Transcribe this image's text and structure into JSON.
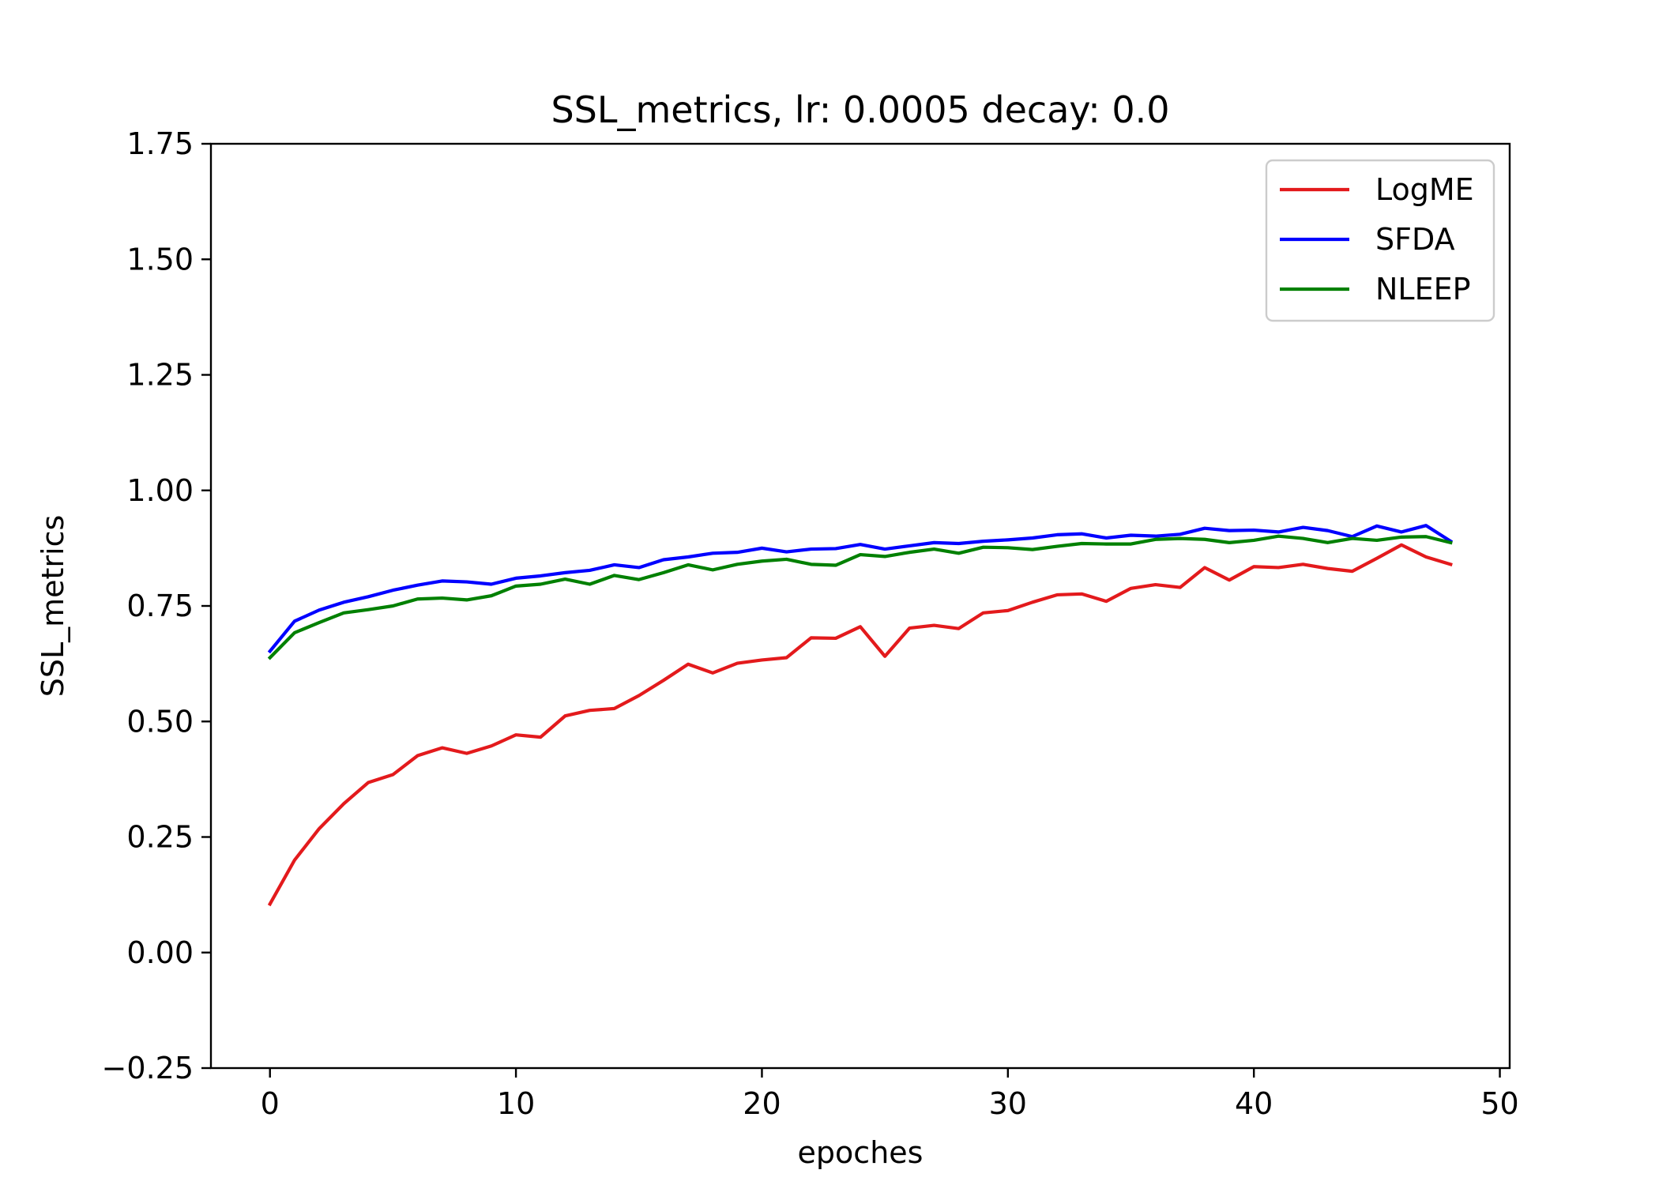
{
  "chart_data": {
    "type": "line",
    "title": "SSL_metrics, lr: 0.0005 decay: 0.0",
    "xlabel": "epoches",
    "ylabel": "SSL_metrics",
    "xlim": [
      -2.4,
      50.4
    ],
    "ylim": [
      -0.25,
      1.75
    ],
    "xticks": [
      0,
      10,
      20,
      30,
      40,
      50
    ],
    "yticks": [
      -0.25,
      0.0,
      0.25,
      0.5,
      0.75,
      1.0,
      1.25,
      1.5,
      1.75
    ],
    "ytick_labels": [
      "−0.25",
      "0.00",
      "0.25",
      "0.50",
      "0.75",
      "1.00",
      "1.25",
      "1.50",
      "1.75"
    ],
    "grid": false,
    "legend_position": "top-right",
    "x": [
      0,
      1,
      2,
      3,
      4,
      5,
      6,
      7,
      8,
      9,
      10,
      11,
      12,
      13,
      14,
      15,
      16,
      17,
      18,
      19,
      20,
      21,
      22,
      23,
      24,
      25,
      26,
      27,
      28,
      29,
      30,
      31,
      32,
      33,
      34,
      35,
      36,
      37,
      38,
      39,
      40,
      41,
      42,
      43,
      44,
      45,
      46,
      47,
      48
    ],
    "series": [
      {
        "name": "LogME",
        "color": "#e31a1c",
        "values": [
          0.105,
          0.2,
          0.268,
          0.322,
          0.368,
          0.385,
          0.426,
          0.443,
          0.431,
          0.447,
          0.471,
          0.466,
          0.512,
          0.524,
          0.528,
          0.556,
          0.589,
          0.624,
          0.605,
          0.626,
          0.633,
          0.638,
          0.681,
          0.68,
          0.705,
          0.641,
          0.702,
          0.708,
          0.701,
          0.735,
          0.74,
          0.758,
          0.774,
          0.776,
          0.76,
          0.788,
          0.796,
          0.79,
          0.833,
          0.806,
          0.835,
          0.833,
          0.84,
          0.831,
          0.825,
          0.853,
          0.882,
          0.856,
          0.84
        ]
      },
      {
        "name": "SFDA",
        "color": "#0000ff",
        "values": [
          0.652,
          0.717,
          0.741,
          0.758,
          0.77,
          0.784,
          0.795,
          0.804,
          0.802,
          0.797,
          0.81,
          0.815,
          0.822,
          0.827,
          0.839,
          0.833,
          0.85,
          0.856,
          0.864,
          0.866,
          0.875,
          0.867,
          0.873,
          0.874,
          0.883,
          0.873,
          0.88,
          0.887,
          0.885,
          0.89,
          0.893,
          0.897,
          0.904,
          0.906,
          0.897,
          0.903,
          0.901,
          0.905,
          0.918,
          0.913,
          0.914,
          0.91,
          0.92,
          0.913,
          0.9,
          0.923,
          0.91,
          0.924,
          0.89
        ]
      },
      {
        "name": "NLEEP",
        "color": "#008000",
        "values": [
          0.638,
          0.692,
          0.714,
          0.735,
          0.742,
          0.75,
          0.765,
          0.767,
          0.763,
          0.772,
          0.793,
          0.797,
          0.808,
          0.797,
          0.816,
          0.807,
          0.822,
          0.839,
          0.828,
          0.84,
          0.847,
          0.851,
          0.84,
          0.838,
          0.861,
          0.857,
          0.866,
          0.873,
          0.864,
          0.877,
          0.876,
          0.872,
          0.879,
          0.885,
          0.884,
          0.884,
          0.894,
          0.896,
          0.894,
          0.887,
          0.892,
          0.901,
          0.896,
          0.887,
          0.896,
          0.892,
          0.899,
          0.9,
          0.887
        ]
      }
    ]
  }
}
